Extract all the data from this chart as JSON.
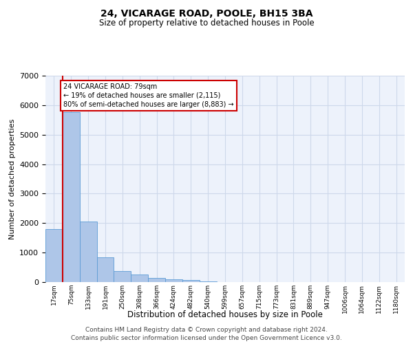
{
  "title": "24, VICARAGE ROAD, POOLE, BH15 3BA",
  "subtitle": "Size of property relative to detached houses in Poole",
  "xlabel": "Distribution of detached houses by size in Poole",
  "ylabel": "Number of detached properties",
  "bin_labels": [
    "17sqm",
    "75sqm",
    "133sqm",
    "191sqm",
    "250sqm",
    "308sqm",
    "366sqm",
    "424sqm",
    "482sqm",
    "540sqm",
    "599sqm",
    "657sqm",
    "715sqm",
    "773sqm",
    "831sqm",
    "889sqm",
    "947sqm",
    "1006sqm",
    "1064sqm",
    "1122sqm",
    "1180sqm"
  ],
  "bar_values": [
    1800,
    5760,
    2060,
    830,
    380,
    250,
    130,
    90,
    80,
    30,
    10,
    0,
    0,
    0,
    0,
    0,
    0,
    0,
    0,
    0,
    0
  ],
  "bar_color": "#aec6e8",
  "bar_edge_color": "#5b9bd5",
  "annotation_label": "24 VICARAGE ROAD: 79sqm",
  "annotation_line1": "← 19% of detached houses are smaller (2,115)",
  "annotation_line2": "80% of semi-detached houses are larger (8,883) →",
  "annotation_box_color": "#cc0000",
  "vline_color": "#cc0000",
  "grid_color": "#cdd8ea",
  "background_color": "#edf2fb",
  "ylim": [
    0,
    7000
  ],
  "yticks": [
    0,
    1000,
    2000,
    3000,
    4000,
    5000,
    6000,
    7000
  ],
  "footer_line1": "Contains HM Land Registry data © Crown copyright and database right 2024.",
  "footer_line2": "Contains public sector information licensed under the Open Government Licence v3.0."
}
